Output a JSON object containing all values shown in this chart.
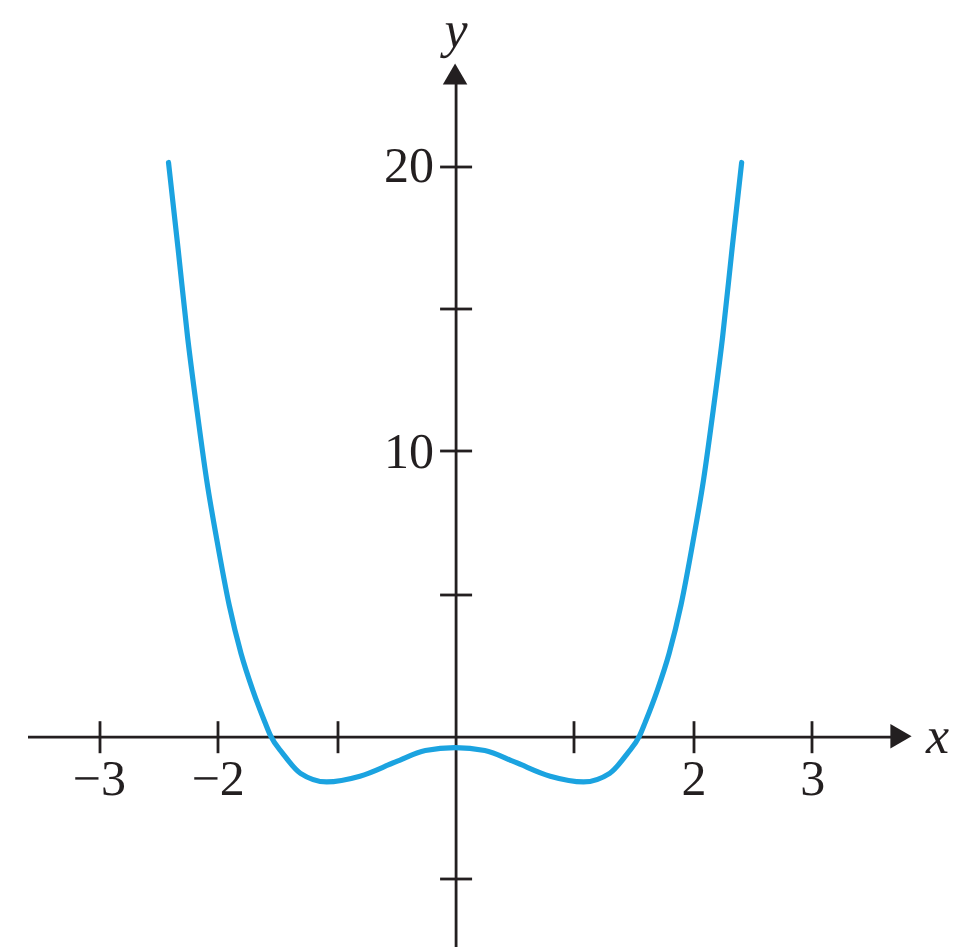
{
  "chart_data": {
    "type": "line",
    "xlabel": "x",
    "ylabel": "y",
    "color": "#1ba3e0",
    "x": [
      -2.41,
      -2.33,
      -2.25,
      -2.17,
      -2.09,
      -2.0,
      -1.9,
      -1.8,
      -1.7,
      -1.6,
      -1.55,
      -1.45,
      -1.3,
      -1.08,
      -0.8,
      -0.5,
      -0.25,
      0,
      0.25,
      0.5,
      0.8,
      1.08,
      1.3,
      1.45,
      1.55,
      1.6,
      1.7,
      1.8,
      1.9,
      2.0,
      2.09,
      2.17,
      2.25,
      2.33,
      2.41
    ],
    "values": [
      20.1,
      17.1,
      14.0,
      11.4,
      9.0,
      6.8,
      4.6,
      2.9,
      1.6,
      0.5,
      0,
      -0.6,
      -1.3,
      -1.6,
      -1.4,
      -0.9,
      -0.5,
      -0.4,
      -0.5,
      -0.9,
      -1.4,
      -1.6,
      -1.3,
      -0.6,
      0,
      0.5,
      1.6,
      2.9,
      4.6,
      6.8,
      9.0,
      11.4,
      14.0,
      17.1,
      20.1
    ],
    "xlim": [
      -3.6,
      3.75
    ],
    "ylim": [
      -7.35,
      23.2
    ],
    "xticks": [
      {
        "value": -3,
        "label": "−3"
      },
      {
        "value": -2,
        "label": "−2"
      },
      {
        "value": -1,
        "label": null
      },
      {
        "value": 1,
        "label": null
      },
      2,
      3
    ],
    "yticks": [
      {
        "value": -5,
        "label": null
      },
      {
        "value": 5,
        "label": null
      },
      10,
      {
        "value": 15,
        "label": null
      },
      20
    ]
  }
}
